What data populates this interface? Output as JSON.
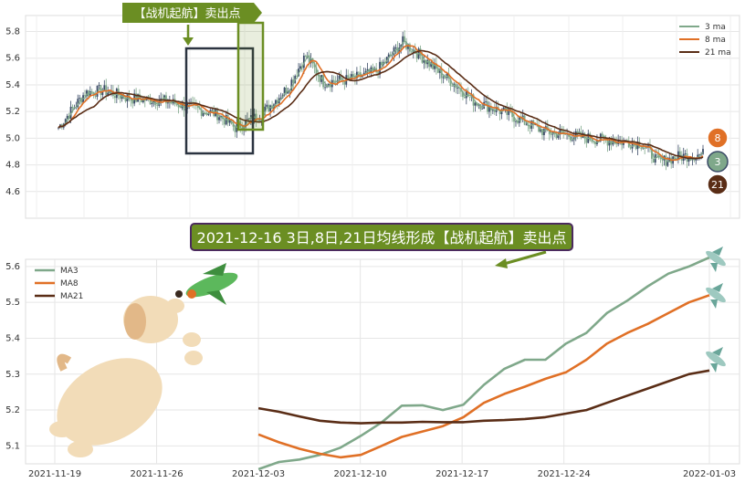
{
  "chart_data": [
    {
      "type": "candlestick",
      "ylim": [
        4.4,
        5.92
      ],
      "yticks": [
        "4.6",
        "4.8",
        "5.0",
        "5.2",
        "5.4",
        "5.6",
        "5.8"
      ],
      "legend": [
        "3 ma",
        "8 ma",
        "21 ma"
      ],
      "legend_placement": "top-right",
      "grid": true,
      "signal_flag": "【战机起航】卖出点",
      "ma_badges": [
        "8",
        "3",
        "21"
      ],
      "colors": {
        "ma3": "#7fa88a",
        "ma8": "#e07026",
        "ma21": "#5a2d16",
        "up": "#3a4a66",
        "down": "#7fa88a",
        "flag": "#6b8e23",
        "box": "#2b3340"
      }
    },
    {
      "type": "line",
      "title": "2021-12-16 3日,8日,21日均线形成【战机起航】卖出点",
      "x": [
        "2021-12-03",
        "2021-12-04",
        "2021-12-06",
        "2021-12-07",
        "2021-12-08",
        "2021-12-09",
        "2021-12-10",
        "2021-12-13",
        "2021-12-14",
        "2021-12-15",
        "2021-12-16",
        "2021-12-17",
        "2021-12-20",
        "2021-12-21",
        "2021-12-22",
        "2021-12-23",
        "2021-12-24",
        "2021-12-27",
        "2021-12-28",
        "2021-12-29",
        "2021-12-30",
        "2021-12-31",
        "2022-01-03"
      ],
      "xticks": [
        "2021-11-19",
        "2021-11-26",
        "2021-12-03",
        "2021-12-10",
        "2021-12-17",
        "2021-12-24",
        "2022-01-03"
      ],
      "yticks": [
        "5.1",
        "5.2",
        "5.3",
        "5.4",
        "5.5",
        "5.6"
      ],
      "ylim": [
        5.05,
        5.62
      ],
      "legend_placement": "top-left",
      "grid": true,
      "series": [
        {
          "name": "MA3",
          "color": "#7fa88a",
          "values": [
            5.035,
            5.055,
            5.062,
            5.075,
            5.095,
            5.128,
            5.165,
            5.212,
            5.213,
            5.2,
            5.215,
            5.27,
            5.315,
            5.34,
            5.34,
            5.385,
            5.415,
            5.47,
            5.505,
            5.545,
            5.58,
            5.6,
            5.625
          ]
        },
        {
          "name": "MA8",
          "color": "#e07026",
          "values": [
            5.132,
            5.11,
            5.092,
            5.078,
            5.068,
            5.075,
            5.1,
            5.125,
            5.14,
            5.155,
            5.18,
            5.22,
            5.245,
            5.265,
            5.287,
            5.305,
            5.34,
            5.385,
            5.415,
            5.44,
            5.47,
            5.5,
            5.52
          ]
        },
        {
          "name": "MA21",
          "color": "#5a2d16",
          "values": [
            5.205,
            5.195,
            5.182,
            5.17,
            5.165,
            5.163,
            5.165,
            5.165,
            5.167,
            5.166,
            5.166,
            5.17,
            5.172,
            5.175,
            5.18,
            5.19,
            5.2,
            5.22,
            5.24,
            5.26,
            5.28,
            5.3,
            5.31
          ]
        }
      ]
    }
  ]
}
